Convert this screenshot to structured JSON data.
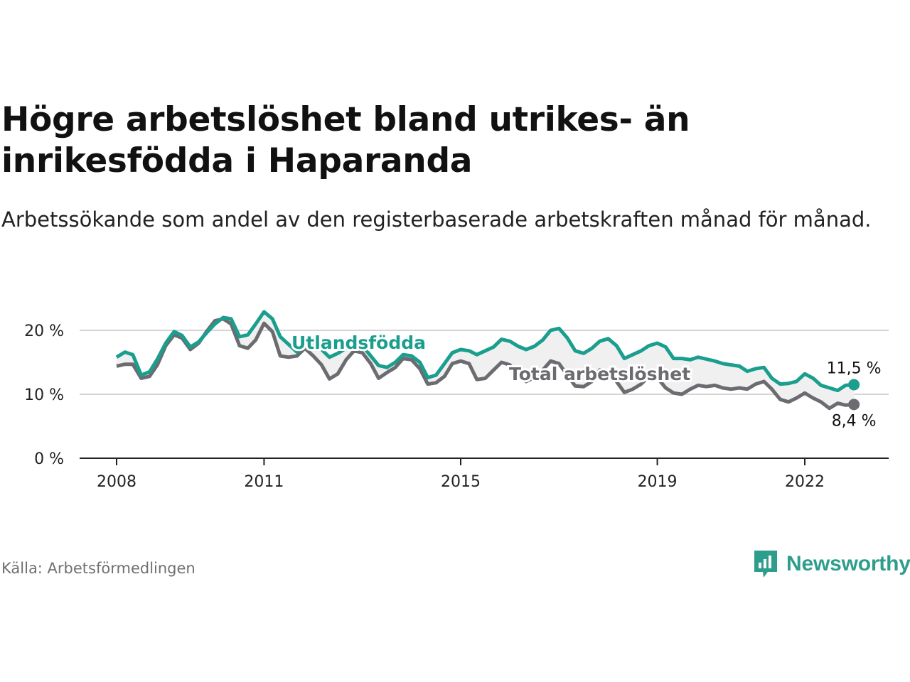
{
  "title": "Högre arbetslöshet bland utrikes- än inrikesfödda i Haparanda",
  "subtitle": "Arbetssökande som andel av den registerbaserade arbetskraften månad för månad.",
  "source": "Källa: Arbetsförmedlingen",
  "brand": "Newsworthy",
  "colors": {
    "foreign": "#1a9e8e",
    "total": "#6b6b70",
    "fill": "#f0f0f0",
    "brand": "#2e9e8c"
  },
  "chart_data": {
    "type": "line",
    "title": "Högre arbetslöshet bland utrikes- än inrikesfödda i Haparanda",
    "ylabel": "",
    "xlabel": "",
    "ylim": [
      0,
      25
    ],
    "xlim": [
      2007.4,
      2023.7
    ],
    "y_ticks": [
      0,
      10,
      20
    ],
    "y_tick_labels": [
      "0 %",
      "10 %",
      "20 %"
    ],
    "x_ticks": [
      2008,
      2011,
      2015,
      2019,
      2022
    ],
    "x_tick_labels": [
      "2008",
      "2011",
      "2015",
      "2019",
      "2022"
    ],
    "series": [
      {
        "name": "Utlandsfödda",
        "color": "#1a9e8e",
        "end_label": "11,5 %",
        "points": [
          [
            2008.0,
            15.8
          ],
          [
            2008.17,
            16.6
          ],
          [
            2008.33,
            16.2
          ],
          [
            2008.5,
            13.0
          ],
          [
            2008.67,
            13.5
          ],
          [
            2008.83,
            15.5
          ],
          [
            2009.0,
            18.0
          ],
          [
            2009.17,
            19.8
          ],
          [
            2009.33,
            19.2
          ],
          [
            2009.5,
            17.4
          ],
          [
            2009.67,
            18.2
          ],
          [
            2009.83,
            19.6
          ],
          [
            2010.0,
            21.0
          ],
          [
            2010.17,
            22.0
          ],
          [
            2010.33,
            21.8
          ],
          [
            2010.5,
            19.0
          ],
          [
            2010.67,
            19.3
          ],
          [
            2010.83,
            21.0
          ],
          [
            2011.0,
            22.9
          ],
          [
            2011.17,
            21.8
          ],
          [
            2011.33,
            19.0
          ],
          [
            2011.5,
            17.8
          ],
          [
            2011.67,
            16.6
          ],
          [
            2011.83,
            17.8
          ],
          [
            2012.0,
            18.0
          ],
          [
            2012.17,
            17.0
          ],
          [
            2012.33,
            15.8
          ],
          [
            2012.5,
            16.4
          ],
          [
            2012.67,
            17.2
          ],
          [
            2012.83,
            18.0
          ],
          [
            2013.0,
            17.6
          ],
          [
            2013.17,
            16.0
          ],
          [
            2013.33,
            14.5
          ],
          [
            2013.5,
            14.2
          ],
          [
            2013.67,
            15.0
          ],
          [
            2013.83,
            16.2
          ],
          [
            2014.0,
            16.0
          ],
          [
            2014.17,
            15.0
          ],
          [
            2014.33,
            12.6
          ],
          [
            2014.5,
            13.0
          ],
          [
            2014.67,
            14.8
          ],
          [
            2014.83,
            16.5
          ],
          [
            2015.0,
            17.0
          ],
          [
            2015.17,
            16.8
          ],
          [
            2015.33,
            16.2
          ],
          [
            2015.5,
            16.8
          ],
          [
            2015.67,
            17.4
          ],
          [
            2015.83,
            18.6
          ],
          [
            2016.0,
            18.3
          ],
          [
            2016.17,
            17.5
          ],
          [
            2016.33,
            17.0
          ],
          [
            2016.5,
            17.5
          ],
          [
            2016.67,
            18.5
          ],
          [
            2016.83,
            20.0
          ],
          [
            2017.0,
            20.3
          ],
          [
            2017.17,
            18.8
          ],
          [
            2017.33,
            16.8
          ],
          [
            2017.5,
            16.4
          ],
          [
            2017.67,
            17.2
          ],
          [
            2017.83,
            18.3
          ],
          [
            2018.0,
            18.7
          ],
          [
            2018.17,
            17.6
          ],
          [
            2018.33,
            15.6
          ],
          [
            2018.5,
            16.2
          ],
          [
            2018.67,
            16.8
          ],
          [
            2018.83,
            17.6
          ],
          [
            2019.0,
            18.0
          ],
          [
            2019.17,
            17.4
          ],
          [
            2019.33,
            15.6
          ],
          [
            2019.5,
            15.6
          ],
          [
            2019.67,
            15.4
          ],
          [
            2019.83,
            15.8
          ],
          [
            2020.0,
            15.5
          ],
          [
            2020.17,
            15.2
          ],
          [
            2020.33,
            14.8
          ],
          [
            2020.5,
            14.6
          ],
          [
            2020.67,
            14.4
          ],
          [
            2020.83,
            13.6
          ],
          [
            2021.0,
            14.0
          ],
          [
            2021.17,
            14.2
          ],
          [
            2021.33,
            12.5
          ],
          [
            2021.5,
            11.6
          ],
          [
            2021.67,
            11.7
          ],
          [
            2021.83,
            12.0
          ],
          [
            2022.0,
            13.2
          ],
          [
            2022.17,
            12.5
          ],
          [
            2022.33,
            11.4
          ],
          [
            2022.5,
            11.0
          ],
          [
            2022.67,
            10.6
          ],
          [
            2022.83,
            11.4
          ],
          [
            2023.0,
            11.5
          ]
        ]
      },
      {
        "name": "Total arbetslöshet",
        "color": "#6b6b70",
        "end_label": "8,4 %",
        "points": [
          [
            2008.0,
            14.4
          ],
          [
            2008.17,
            14.7
          ],
          [
            2008.33,
            14.7
          ],
          [
            2008.5,
            12.5
          ],
          [
            2008.67,
            12.8
          ],
          [
            2008.83,
            14.6
          ],
          [
            2009.0,
            17.6
          ],
          [
            2009.17,
            19.3
          ],
          [
            2009.33,
            18.8
          ],
          [
            2009.5,
            17.0
          ],
          [
            2009.67,
            18.0
          ],
          [
            2009.83,
            19.8
          ],
          [
            2010.0,
            21.5
          ],
          [
            2010.17,
            21.8
          ],
          [
            2010.33,
            21.0
          ],
          [
            2010.5,
            17.6
          ],
          [
            2010.67,
            17.2
          ],
          [
            2010.83,
            18.5
          ],
          [
            2011.0,
            21.1
          ],
          [
            2011.17,
            19.8
          ],
          [
            2011.33,
            16.0
          ],
          [
            2011.5,
            15.8
          ],
          [
            2011.67,
            16.0
          ],
          [
            2011.83,
            17.2
          ],
          [
            2012.0,
            16.0
          ],
          [
            2012.17,
            14.6
          ],
          [
            2012.33,
            12.4
          ],
          [
            2012.5,
            13.2
          ],
          [
            2012.67,
            15.4
          ],
          [
            2012.83,
            16.8
          ],
          [
            2013.0,
            16.5
          ],
          [
            2013.17,
            14.8
          ],
          [
            2013.33,
            12.5
          ],
          [
            2013.5,
            13.4
          ],
          [
            2013.67,
            14.2
          ],
          [
            2013.83,
            15.6
          ],
          [
            2014.0,
            15.4
          ],
          [
            2014.17,
            14.0
          ],
          [
            2014.33,
            11.6
          ],
          [
            2014.5,
            11.8
          ],
          [
            2014.67,
            12.8
          ],
          [
            2014.83,
            14.8
          ],
          [
            2015.0,
            15.2
          ],
          [
            2015.17,
            14.8
          ],
          [
            2015.33,
            12.3
          ],
          [
            2015.5,
            12.5
          ],
          [
            2015.67,
            13.8
          ],
          [
            2015.83,
            15.0
          ],
          [
            2016.0,
            14.6
          ],
          [
            2016.17,
            13.0
          ],
          [
            2016.33,
            12.0
          ],
          [
            2016.5,
            12.6
          ],
          [
            2016.67,
            13.8
          ],
          [
            2016.83,
            15.2
          ],
          [
            2017.0,
            14.8
          ],
          [
            2017.17,
            13.0
          ],
          [
            2017.33,
            11.3
          ],
          [
            2017.5,
            11.2
          ],
          [
            2017.67,
            12.0
          ],
          [
            2017.83,
            13.8
          ],
          [
            2018.0,
            13.5
          ],
          [
            2018.17,
            12.0
          ],
          [
            2018.33,
            10.3
          ],
          [
            2018.5,
            10.8
          ],
          [
            2018.67,
            11.6
          ],
          [
            2018.83,
            12.8
          ],
          [
            2019.0,
            12.6
          ],
          [
            2019.17,
            11.0
          ],
          [
            2019.33,
            10.2
          ],
          [
            2019.5,
            10.0
          ],
          [
            2019.67,
            10.8
          ],
          [
            2019.83,
            11.4
          ],
          [
            2020.0,
            11.2
          ],
          [
            2020.17,
            11.4
          ],
          [
            2020.33,
            11.0
          ],
          [
            2020.5,
            10.8
          ],
          [
            2020.67,
            11.0
          ],
          [
            2020.83,
            10.8
          ],
          [
            2021.0,
            11.6
          ],
          [
            2021.17,
            12.0
          ],
          [
            2021.33,
            10.8
          ],
          [
            2021.5,
            9.2
          ],
          [
            2021.67,
            8.8
          ],
          [
            2021.83,
            9.4
          ],
          [
            2022.0,
            10.2
          ],
          [
            2022.17,
            9.4
          ],
          [
            2022.33,
            8.8
          ],
          [
            2022.5,
            7.8
          ],
          [
            2022.67,
            8.6
          ],
          [
            2022.83,
            8.3
          ],
          [
            2023.0,
            8.4
          ]
        ]
      }
    ]
  }
}
